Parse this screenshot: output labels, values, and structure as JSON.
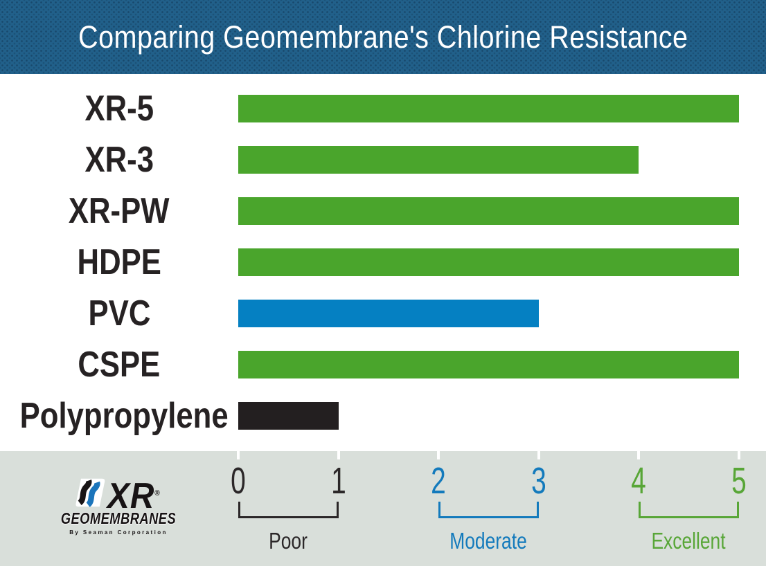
{
  "header": {
    "title": "Comparing Geomembrane's Chlorine Resistance"
  },
  "chart_data": {
    "type": "bar",
    "orientation": "horizontal",
    "title": "Comparing Geomembrane's Chlorine Resistance",
    "categories": [
      "XR-5",
      "XR-3",
      "XR-PW",
      "HDPE",
      "PVC",
      "CSPE",
      "Polypropylene"
    ],
    "values": [
      5,
      4,
      5,
      5,
      3,
      5,
      1
    ],
    "bar_color_keys": [
      "green",
      "green",
      "green",
      "green",
      "blue",
      "green",
      "black"
    ],
    "xlim": [
      0,
      5
    ],
    "grid": false,
    "legend_position": "bottom",
    "x_ticks": [
      {
        "value": 0,
        "label": "0",
        "color_key": "dark"
      },
      {
        "value": 1,
        "label": "1",
        "color_key": "dark"
      },
      {
        "value": 2,
        "label": "2",
        "color_key": "blue_text"
      },
      {
        "value": 3,
        "label": "3",
        "color_key": "blue_text"
      },
      {
        "value": 4,
        "label": "4",
        "color_key": "green_text"
      },
      {
        "value": 5,
        "label": "5",
        "color_key": "green_text"
      }
    ],
    "rating_zones": [
      {
        "label": "Poor",
        "from": 0,
        "to": 1,
        "color_key": "dark"
      },
      {
        "label": "Moderate",
        "from": 2,
        "to": 3,
        "color_key": "blue_text"
      },
      {
        "label": "Excellent",
        "from": 4,
        "to": 5,
        "color_key": "green_text"
      }
    ]
  },
  "colors": {
    "green": "#4aa52c",
    "blue": "#0580c2",
    "black": "#231f20",
    "dark": "#2b2728",
    "blue_text": "#137abc",
    "green_text": "#58a637",
    "header_bg": "#21608a",
    "footer_bg": "#d9dfda",
    "title_text": "#ffffff",
    "label_text": "#262223",
    "tick_mark": "#ffffff"
  },
  "logo": {
    "brand": "XR",
    "registered_mark": "®",
    "sub_brand": "GEOMEMBRANES",
    "tagline": "By Seaman Corporation"
  }
}
